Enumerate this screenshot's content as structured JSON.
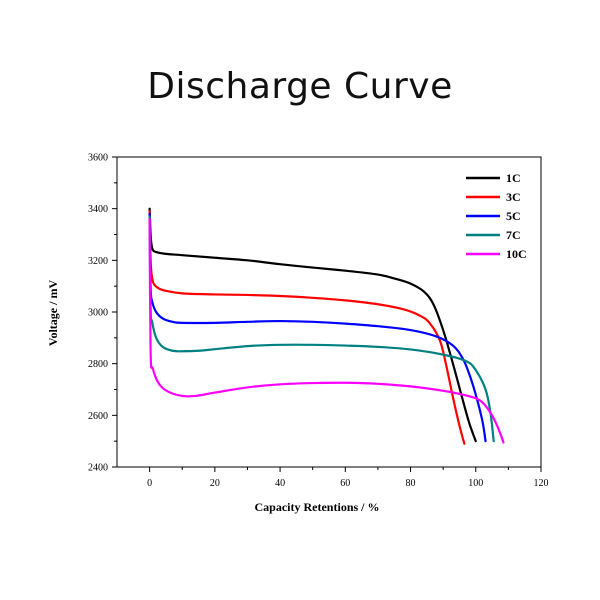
{
  "title": "Discharge Curve",
  "chart_data": {
    "type": "line",
    "title": "Discharge Curve",
    "xlabel": "Capacity Retentions / %",
    "ylabel": "Voltage / mV",
    "xlim": [
      -10,
      120
    ],
    "ylim": [
      2400,
      3600
    ],
    "xticks": [
      0,
      20,
      40,
      60,
      80,
      100,
      120
    ],
    "yticks": [
      2400,
      2600,
      2800,
      3000,
      3200,
      3400,
      3600
    ],
    "grid": false,
    "legend_position": "top-right",
    "series": [
      {
        "name": "1C",
        "color": "#000000",
        "points": [
          [
            0,
            3400
          ],
          [
            0.3,
            3300
          ],
          [
            0.6,
            3260
          ],
          [
            1,
            3240
          ],
          [
            2,
            3232
          ],
          [
            5,
            3225
          ],
          [
            10,
            3220
          ],
          [
            20,
            3210
          ],
          [
            30,
            3200
          ],
          [
            40,
            3185
          ],
          [
            50,
            3172
          ],
          [
            60,
            3160
          ],
          [
            70,
            3145
          ],
          [
            75,
            3130
          ],
          [
            80,
            3110
          ],
          [
            84,
            3080
          ],
          [
            87,
            3030
          ],
          [
            90,
            2930
          ],
          [
            93,
            2800
          ],
          [
            96,
            2660
          ],
          [
            98,
            2570
          ],
          [
            100,
            2500
          ]
        ]
      },
      {
        "name": "3C",
        "color": "#ff0000",
        "points": [
          [
            0,
            3390
          ],
          [
            0.3,
            3200
          ],
          [
            0.8,
            3130
          ],
          [
            1.5,
            3105
          ],
          [
            3,
            3090
          ],
          [
            5,
            3082
          ],
          [
            10,
            3072
          ],
          [
            20,
            3068
          ],
          [
            30,
            3066
          ],
          [
            40,
            3062
          ],
          [
            50,
            3055
          ],
          [
            60,
            3045
          ],
          [
            70,
            3030
          ],
          [
            78,
            3010
          ],
          [
            83,
            2985
          ],
          [
            86,
            2955
          ],
          [
            89,
            2890
          ],
          [
            91,
            2790
          ],
          [
            93,
            2670
          ],
          [
            95,
            2560
          ],
          [
            96.5,
            2490
          ]
        ]
      },
      {
        "name": "5C",
        "color": "#0000ff",
        "points": [
          [
            0,
            3380
          ],
          [
            0.3,
            3100
          ],
          [
            0.8,
            3040
          ],
          [
            2,
            3000
          ],
          [
            4,
            2975
          ],
          [
            7,
            2962
          ],
          [
            10,
            2958
          ],
          [
            20,
            2958
          ],
          [
            30,
            2962
          ],
          [
            40,
            2965
          ],
          [
            50,
            2962
          ],
          [
            60,
            2955
          ],
          [
            70,
            2945
          ],
          [
            80,
            2930
          ],
          [
            88,
            2905
          ],
          [
            93,
            2870
          ],
          [
            96,
            2820
          ],
          [
            98,
            2760
          ],
          [
            100,
            2680
          ],
          [
            102,
            2580
          ],
          [
            103,
            2500
          ]
        ]
      },
      {
        "name": "7C",
        "color": "#008080",
        "points": [
          [
            0,
            3370
          ],
          [
            0.3,
            3020
          ],
          [
            0.8,
            2960
          ],
          [
            2,
            2900
          ],
          [
            4,
            2865
          ],
          [
            7,
            2850
          ],
          [
            10,
            2848
          ],
          [
            15,
            2850
          ],
          [
            20,
            2856
          ],
          [
            30,
            2868
          ],
          [
            40,
            2873
          ],
          [
            50,
            2873
          ],
          [
            60,
            2870
          ],
          [
            70,
            2865
          ],
          [
            80,
            2855
          ],
          [
            90,
            2835
          ],
          [
            97,
            2810
          ],
          [
            100,
            2775
          ],
          [
            103,
            2700
          ],
          [
            104.5,
            2610
          ],
          [
            105.5,
            2500
          ]
        ]
      },
      {
        "name": "10C",
        "color": "#ff00ff",
        "points": [
          [
            0,
            3360
          ],
          [
            0.3,
            2850
          ],
          [
            1,
            2780
          ],
          [
            3,
            2720
          ],
          [
            6,
            2690
          ],
          [
            10,
            2675
          ],
          [
            14,
            2675
          ],
          [
            20,
            2688
          ],
          [
            30,
            2708
          ],
          [
            40,
            2720
          ],
          [
            50,
            2725
          ],
          [
            60,
            2726
          ],
          [
            70,
            2722
          ],
          [
            80,
            2712
          ],
          [
            90,
            2695
          ],
          [
            96,
            2680
          ],
          [
            101,
            2660
          ],
          [
            104,
            2620
          ],
          [
            106,
            2575
          ],
          [
            107.5,
            2530
          ],
          [
            108.5,
            2495
          ]
        ]
      }
    ]
  }
}
